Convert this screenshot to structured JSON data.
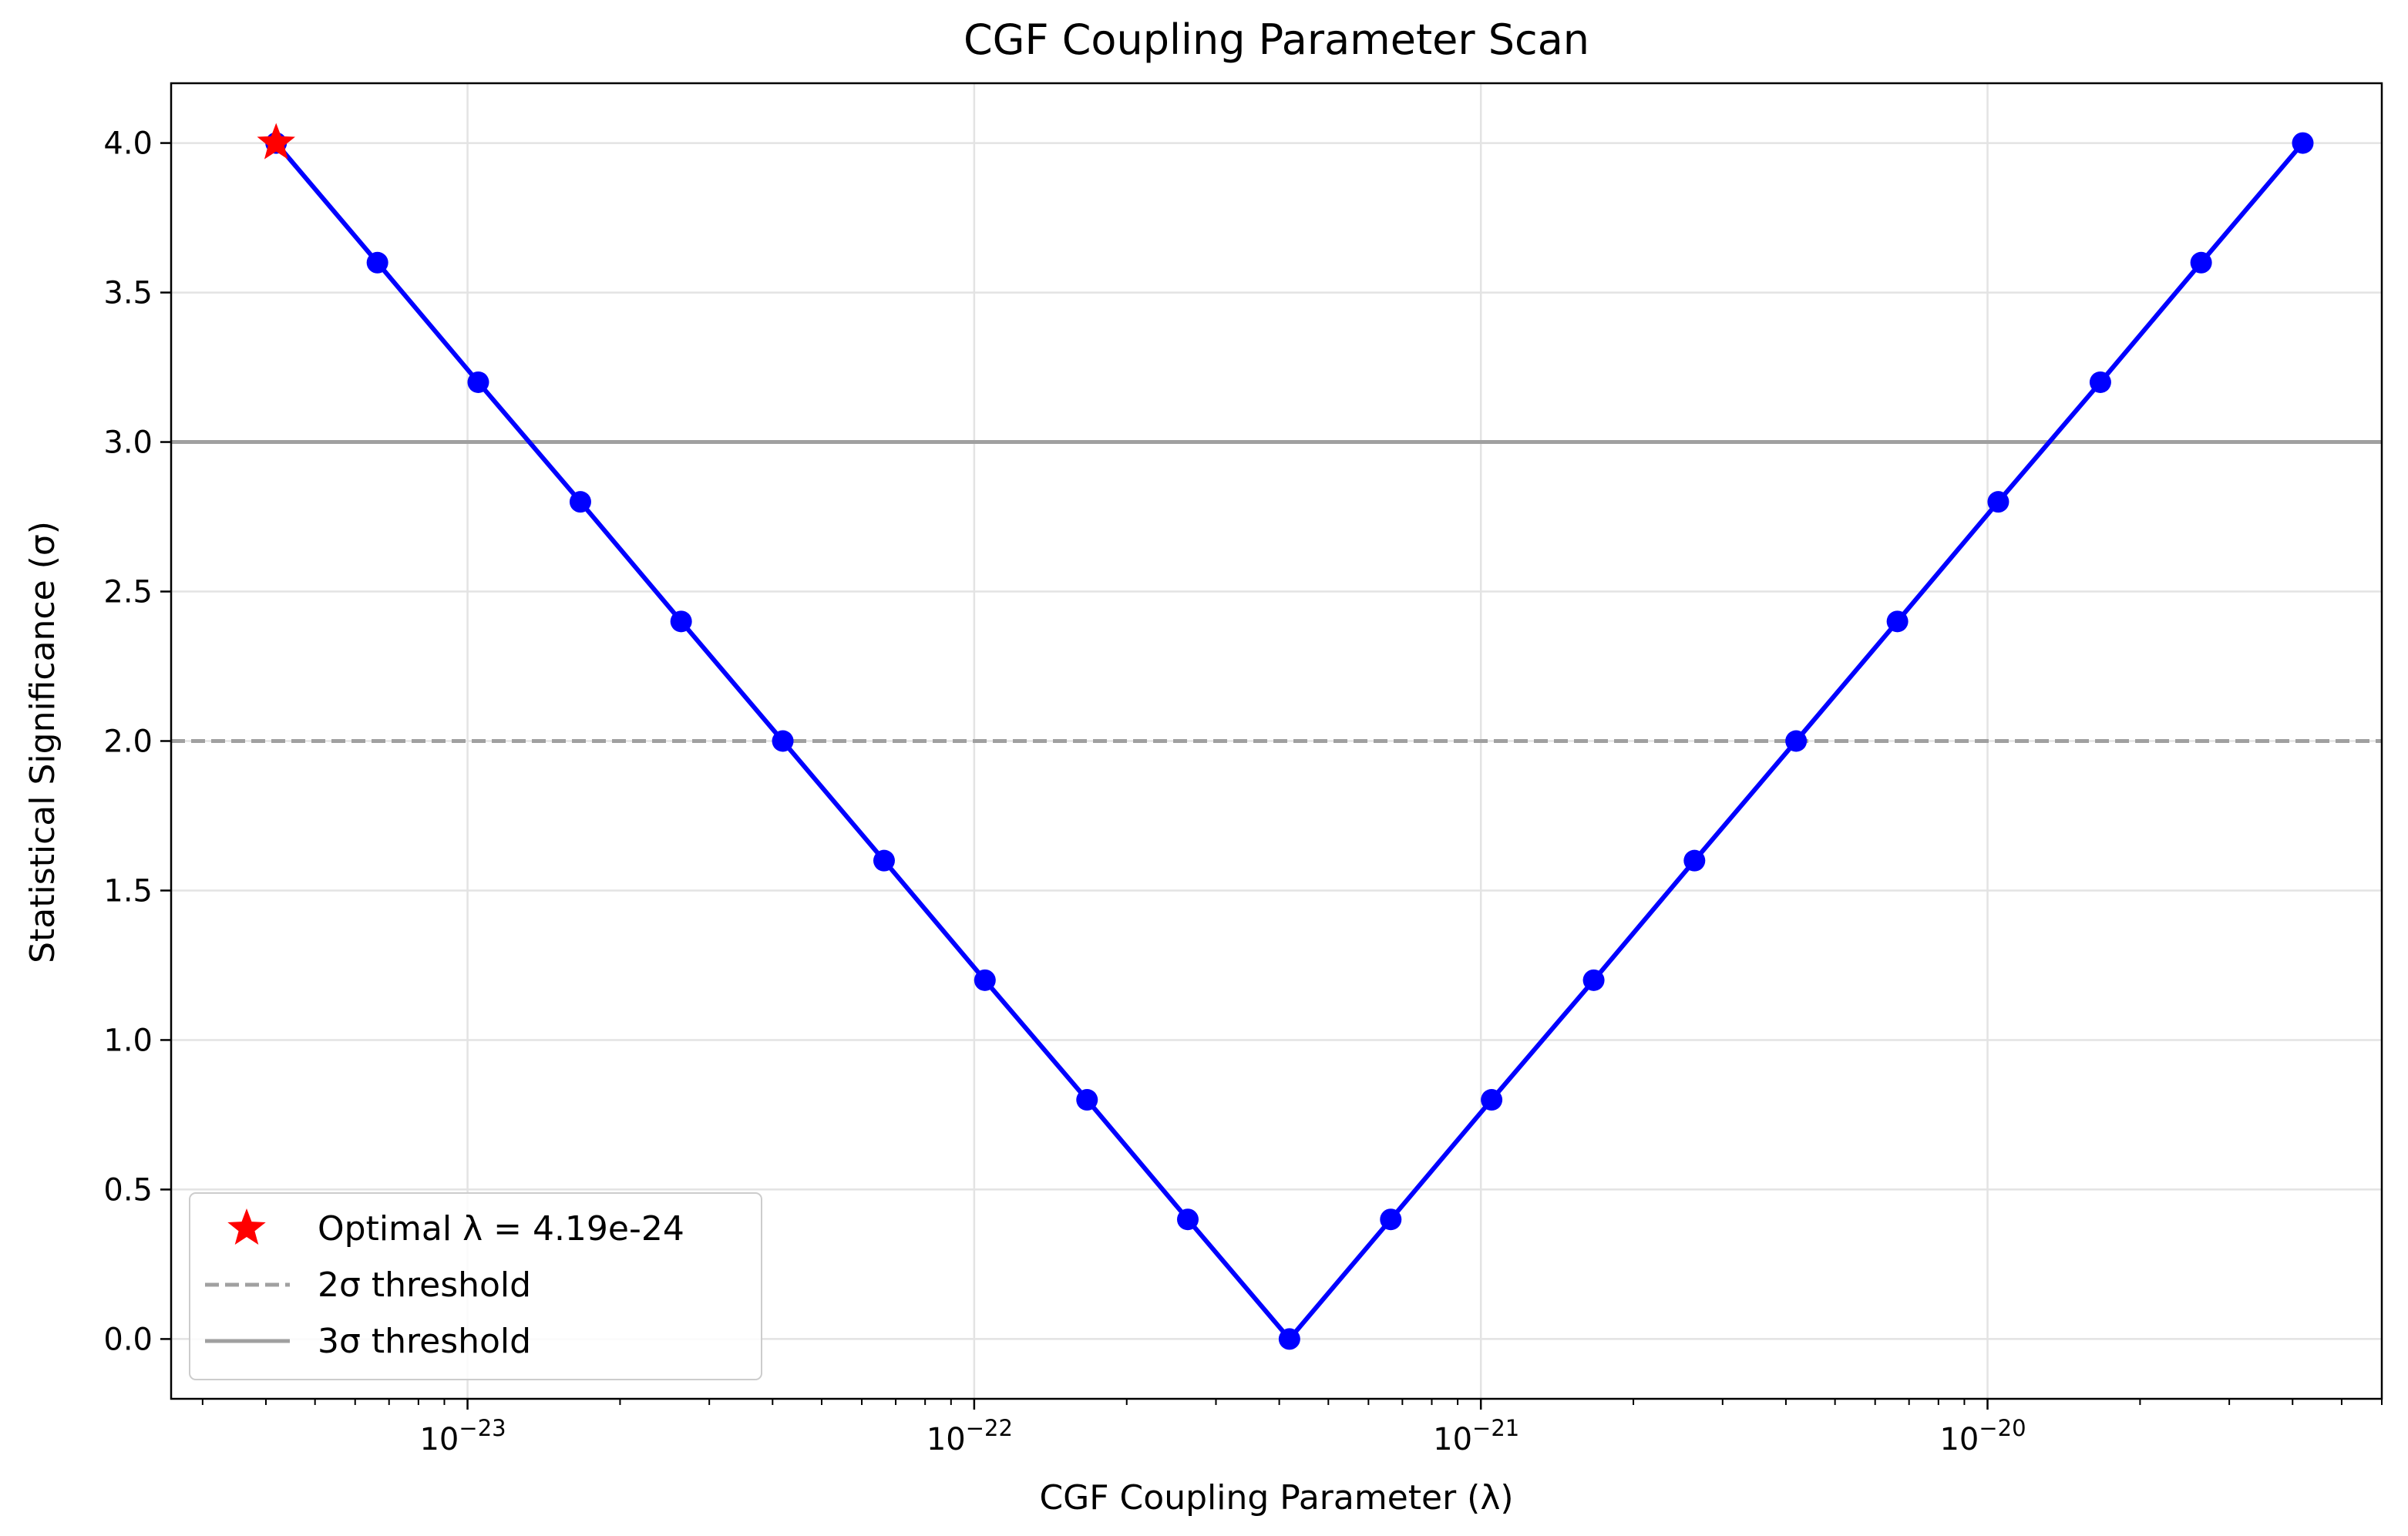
{
  "chart_data": {
    "type": "line",
    "title": "CGF Coupling Parameter Scan",
    "xlabel": "CGF Coupling Parameter (λ)",
    "ylabel": "Statistical Significance (σ)",
    "xscale": "log",
    "xlim": [
      2.6e-24,
      6e-20
    ],
    "ylim": [
      -0.2,
      4.2
    ],
    "grid": true,
    "legend_position": "lower-left",
    "x_ticks": [
      1e-23,
      1e-22,
      1e-21,
      1e-20
    ],
    "x_tick_labels": [
      {
        "base": "10",
        "exp": "−23"
      },
      {
        "base": "10",
        "exp": "−22"
      },
      {
        "base": "10",
        "exp": "−21"
      },
      {
        "base": "10",
        "exp": "−20"
      }
    ],
    "y_ticks": [
      0.0,
      0.5,
      1.0,
      1.5,
      2.0,
      2.5,
      3.0,
      3.5,
      4.0
    ],
    "y_tick_labels": [
      "0.0",
      "0.5",
      "1.0",
      "1.5",
      "2.0",
      "2.5",
      "3.0",
      "3.5",
      "4.0"
    ],
    "series": [
      {
        "color": "#0000ff",
        "x": [
          4.19e-24,
          6.64e-24,
          1.05e-23,
          1.67e-23,
          2.64e-23,
          4.19e-23,
          6.64e-23,
          1.05e-22,
          1.67e-22,
          2.64e-22,
          4.19e-22,
          6.64e-22,
          1.05e-21,
          1.67e-21,
          2.64e-21,
          4.19e-21,
          6.64e-21,
          1.05e-20,
          1.67e-20,
          2.64e-20,
          4.19e-20
        ],
        "y": [
          4.0,
          3.6,
          3.2,
          2.8,
          2.4,
          2.0,
          1.6,
          1.2,
          0.8,
          0.4,
          0.0,
          0.4,
          0.8,
          1.2,
          1.6,
          2.0,
          2.4,
          2.8,
          3.2,
          3.6,
          4.0
        ]
      }
    ],
    "optimal_point": {
      "x": 4.19e-24,
      "y": 4.0,
      "label": "Optimal λ = 4.19e-24",
      "color": "#ff0000"
    },
    "thresholds": [
      {
        "y": 2.0,
        "label": "2σ threshold",
        "style": "dashed",
        "color": "#a0a0a0"
      },
      {
        "y": 3.0,
        "label": "3σ threshold",
        "style": "solid",
        "color": "#a0a0a0"
      }
    ]
  }
}
